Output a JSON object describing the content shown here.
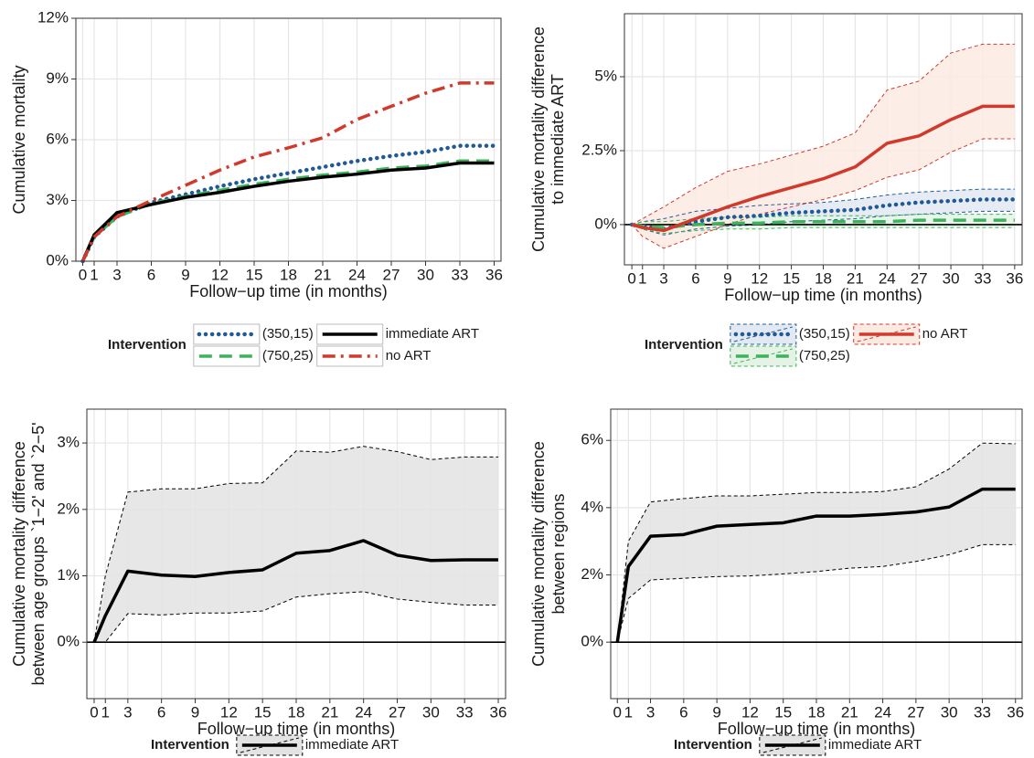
{
  "chart_data": [
    {
      "type": "line",
      "x_label": "Follow−up time (in months)",
      "y_label": [
        "Cumulative mortality"
      ],
      "legend_title": "Intervention",
      "x": [
        0,
        1,
        3,
        6,
        9,
        12,
        15,
        18,
        21,
        24,
        27,
        30,
        33,
        36
      ],
      "xlim": [
        -0.6,
        36.6
      ],
      "xticks": [
        0,
        1,
        3,
        6,
        9,
        12,
        15,
        18,
        21,
        24,
        27,
        30,
        33,
        36
      ],
      "ylim": [
        0,
        12
      ],
      "yticks": [
        {
          "value": 0,
          "label": "0%"
        },
        {
          "value": 3,
          "label": "3%"
        },
        {
          "value": 6,
          "label": "6%"
        },
        {
          "value": 9,
          "label": "9%"
        },
        {
          "value": 12,
          "label": "12%"
        }
      ],
      "grid": true,
      "series": [
        {
          "name": "(350,15)",
          "color": "#1f5a96",
          "linestyle": "dotted",
          "values": [
            0,
            1.2,
            2.2,
            2.9,
            3.3,
            3.7,
            4.05,
            4.35,
            4.65,
            4.95,
            5.2,
            5.4,
            5.7,
            5.7
          ]
        },
        {
          "name": "(750,25)",
          "color": "#3cb35a",
          "linestyle": "dashed",
          "values": [
            0,
            1.2,
            2.2,
            2.85,
            3.2,
            3.5,
            3.8,
            4.05,
            4.25,
            4.4,
            4.6,
            4.7,
            4.95,
            4.95
          ]
        },
        {
          "name": "immediate ART",
          "color": "#000000",
          "linestyle": "solid",
          "values": [
            0,
            1.3,
            2.4,
            2.8,
            3.15,
            3.4,
            3.7,
            3.95,
            4.15,
            4.3,
            4.5,
            4.6,
            4.85,
            4.85
          ]
        },
        {
          "name": "no ART",
          "color": "#d0392b",
          "linestyle": "dashdot",
          "values": [
            0,
            1.2,
            2.2,
            3.0,
            3.75,
            4.5,
            5.15,
            5.6,
            6.1,
            7.0,
            7.65,
            8.3,
            8.8,
            8.8
          ]
        }
      ]
    },
    {
      "type": "line",
      "x_label": "Follow−up time (in months)",
      "y_label": [
        "Cumulative mortality difference",
        "to immediate ART"
      ],
      "legend_title": "Intervention",
      "x": [
        0,
        1,
        3,
        6,
        9,
        12,
        15,
        18,
        21,
        24,
        27,
        30,
        33,
        36
      ],
      "xlim": [
        -0.7,
        36.7
      ],
      "xticks": [
        0,
        1,
        3,
        6,
        9,
        12,
        15,
        18,
        21,
        24,
        27,
        30,
        33,
        36
      ],
      "ylim": [
        -1.36,
        7.13
      ],
      "yticks": [
        {
          "value": 0,
          "label": "0%"
        },
        {
          "value": 2.5,
          "label": "2.5%"
        },
        {
          "value": 5,
          "label": "5%"
        }
      ],
      "hline": 0,
      "grid": true,
      "series": [
        {
          "name": "(350,15)",
          "color": "#1f5a96",
          "band_color": "#e3e9f2",
          "linestyle": "dotted",
          "values": [
            0,
            -0.05,
            -0.15,
            0.1,
            0.25,
            0.3,
            0.4,
            0.45,
            0.5,
            0.65,
            0.75,
            0.8,
            0.85,
            0.85
          ],
          "lower": [
            0,
            -0.15,
            -0.35,
            -0.15,
            -0.05,
            0,
            0.1,
            0.15,
            0.2,
            0.3,
            0.35,
            0.4,
            0.45,
            0.45
          ],
          "upper": [
            0,
            0.1,
            0.2,
            0.45,
            0.55,
            0.65,
            0.7,
            0.75,
            0.85,
            1.0,
            1.1,
            1.15,
            1.2,
            1.2
          ]
        },
        {
          "name": "(750,25)",
          "color": "#3cb35a",
          "band_color": "#e5f3e7",
          "linestyle": "dashed",
          "values": [
            0,
            -0.05,
            -0.1,
            0,
            0.05,
            0.05,
            0.1,
            0.1,
            0.1,
            0.1,
            0.15,
            0.15,
            0.15,
            0.15
          ],
          "lower": [
            0,
            -0.15,
            -0.3,
            -0.2,
            -0.15,
            -0.15,
            -0.1,
            -0.1,
            -0.1,
            -0.1,
            -0.1,
            -0.1,
            -0.1,
            -0.1
          ],
          "upper": [
            0,
            0.1,
            0.1,
            0.2,
            0.25,
            0.25,
            0.3,
            0.3,
            0.3,
            0.3,
            0.35,
            0.35,
            0.35,
            0.35
          ]
        },
        {
          "name": "no ART",
          "color": "#d0392b",
          "band_color": "#fbeae2",
          "linestyle": "solid",
          "values": [
            0,
            -0.1,
            -0.2,
            0.2,
            0.6,
            0.95,
            1.25,
            1.55,
            1.95,
            2.75,
            3.0,
            3.55,
            4.0,
            4.0
          ],
          "lower": [
            0,
            -0.4,
            -0.8,
            -0.4,
            0,
            0.35,
            0.6,
            0.85,
            1.15,
            1.6,
            1.85,
            2.45,
            2.9,
            2.9
          ],
          "upper": [
            0,
            0.2,
            0.6,
            1.25,
            1.8,
            2.05,
            2.35,
            2.65,
            3.1,
            4.55,
            4.85,
            5.8,
            6.1,
            6.1
          ]
        }
      ]
    },
    {
      "type": "line",
      "x_label": "Follow−up time (in months)",
      "y_label": [
        "Cumulative mortality difference",
        "between age groups `1−2' and `2−5'"
      ],
      "legend_title": "Intervention",
      "x": [
        0,
        1,
        3,
        6,
        9,
        12,
        15,
        18,
        21,
        24,
        27,
        30,
        33,
        36
      ],
      "xlim": [
        -0.65,
        36.65
      ],
      "xticks": [
        0,
        1,
        3,
        6,
        9,
        12,
        15,
        18,
        21,
        24,
        27,
        30,
        33,
        36
      ],
      "ylim": [
        -0.85,
        3.51
      ],
      "yticks": [
        {
          "value": 0,
          "label": "0%"
        },
        {
          "value": 1,
          "label": "1%"
        },
        {
          "value": 2,
          "label": "2%"
        },
        {
          "value": 3,
          "label": "3%"
        }
      ],
      "hline": 0,
      "grid": true,
      "series": [
        {
          "name": "immediate ART",
          "color": "#000000",
          "band_color": "#e3e3e3",
          "linestyle": "solid",
          "values": [
            0,
            0.4,
            1.07,
            1.01,
            0.99,
            1.05,
            1.09,
            1.34,
            1.38,
            1.53,
            1.31,
            1.23,
            1.24,
            1.24
          ],
          "lower": [
            0,
            0,
            0.43,
            0.41,
            0.44,
            0.44,
            0.47,
            0.68,
            0.73,
            0.76,
            0.65,
            0.6,
            0.56,
            0.56
          ],
          "upper": [
            0,
            1.0,
            2.26,
            2.31,
            2.31,
            2.39,
            2.4,
            2.88,
            2.86,
            2.95,
            2.87,
            2.75,
            2.79,
            2.79
          ]
        }
      ]
    },
    {
      "type": "line",
      "x_label": "Follow−up time (in months)",
      "y_label": [
        "Cumulative mortality difference",
        "between regions"
      ],
      "legend_title": "Intervention",
      "x": [
        0,
        1,
        3,
        6,
        9,
        12,
        15,
        18,
        21,
        24,
        27,
        30,
        33,
        36
      ],
      "xlim": [
        -0.6,
        36.6
      ],
      "xticks": [
        0,
        1,
        3,
        6,
        9,
        12,
        15,
        18,
        21,
        24,
        27,
        30,
        33,
        36
      ],
      "ylim": [
        -1.68,
        6.93
      ],
      "yticks": [
        {
          "value": 0,
          "label": "0%"
        },
        {
          "value": 2,
          "label": "2%"
        },
        {
          "value": 4,
          "label": "4%"
        },
        {
          "value": 6,
          "label": "6%"
        }
      ],
      "hline": 0,
      "grid": true,
      "series": [
        {
          "name": "immediate ART",
          "color": "#000000",
          "band_color": "#e3e3e3",
          "linestyle": "solid",
          "values": [
            0,
            2.25,
            3.15,
            3.2,
            3.45,
            3.5,
            3.55,
            3.75,
            3.75,
            3.8,
            3.87,
            4.02,
            4.55,
            4.55
          ],
          "lower": [
            0,
            1.3,
            1.85,
            1.9,
            1.95,
            1.97,
            2.03,
            2.1,
            2.2,
            2.25,
            2.4,
            2.6,
            2.9,
            2.9
          ],
          "upper": [
            0,
            3.0,
            4.17,
            4.27,
            4.35,
            4.35,
            4.4,
            4.45,
            4.45,
            4.48,
            4.62,
            5.15,
            5.92,
            5.9
          ]
        }
      ]
    }
  ]
}
